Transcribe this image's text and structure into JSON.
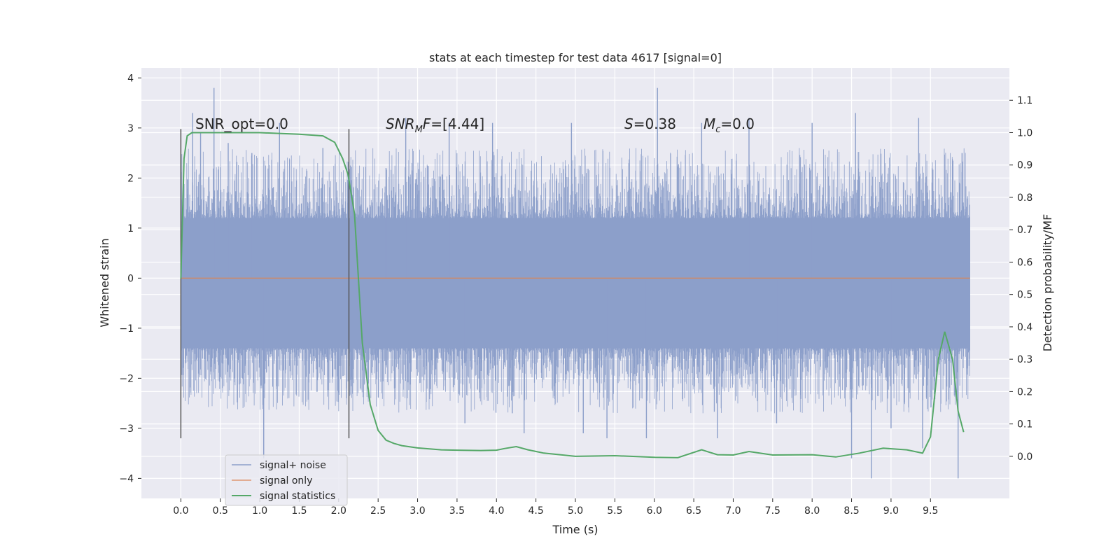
{
  "chart_data": {
    "type": "line",
    "title": "stats at each timestep for test data 4617 [signal=0]",
    "xlabel": "Time (s)",
    "ylabel": "Whitened strain",
    "ylabel_right": "Detection probability/MF",
    "xlim": [
      -0.5,
      10.5
    ],
    "ylim": [
      -4.4,
      4.2
    ],
    "ylim_right": [
      -0.13,
      1.2
    ],
    "x_ticks": [
      0.0,
      0.5,
      1.0,
      1.5,
      2.0,
      2.5,
      3.0,
      3.5,
      4.0,
      4.5,
      5.0,
      5.5,
      6.0,
      6.5,
      7.0,
      7.5,
      8.0,
      8.5,
      9.0,
      9.5
    ],
    "x_tick_labels": [
      "0.0",
      "0.5",
      "1.0",
      "1.5",
      "2.0",
      "2.5",
      "3.0",
      "3.5",
      "4.0",
      "4.5",
      "5.0",
      "5.5",
      "6.0",
      "6.5",
      "7.0",
      "7.5",
      "8.0",
      "8.5",
      "9.0",
      "9.5"
    ],
    "y_ticks": [
      -4,
      -3,
      -2,
      -1,
      0,
      1,
      2,
      3,
      4
    ],
    "y_tick_labels": [
      "−4",
      "−3",
      "−2",
      "−1",
      "0",
      "1",
      "2",
      "3",
      "4"
    ],
    "y_right_ticks": [
      0.0,
      0.1,
      0.2,
      0.3,
      0.4,
      0.5,
      0.6,
      0.7,
      0.8,
      0.9,
      1.0,
      1.1
    ],
    "y_right_tick_labels": [
      "0.0",
      "0.1",
      "0.2",
      "0.3",
      "0.4",
      "0.5",
      "0.6",
      "0.7",
      "0.8",
      "0.9",
      "1.0",
      "1.1"
    ],
    "grid": true,
    "legend_position": "lower-left",
    "annotations": {
      "snr_opt": "SNR_opt=0.0",
      "snr_mf": "=[4.44]",
      "snr_mf_symbol": "SNR",
      "snr_mf_sub": "M",
      "snr_mf_f": "F",
      "s_value": "=0.38",
      "s_symbol": "S",
      "mc_value": "=0.0",
      "mc_symbol": "M",
      "mc_sub": "c"
    },
    "markers": [
      0.0,
      2.13
    ],
    "series": [
      {
        "name": "signal+ noise",
        "color": "#8c9fca",
        "x_range": [
          0.0,
          10.0
        ],
        "typical_range": [
          -1.3,
          1.1
        ],
        "spikes": [
          [
            0.42,
            3.8
          ],
          [
            0.15,
            3.3
          ],
          [
            0.25,
            2.9
          ],
          [
            0.6,
            2.7
          ],
          [
            0.9,
            2.5
          ],
          [
            1.05,
            -3.6
          ],
          [
            1.25,
            3.1
          ],
          [
            1.8,
            2.6
          ],
          [
            2.1,
            -2.4
          ],
          [
            2.6,
            2.2
          ],
          [
            2.85,
            3.2
          ],
          [
            3.4,
            3.1
          ],
          [
            3.6,
            -2.9
          ],
          [
            3.95,
            3.1
          ],
          [
            4.2,
            -2.7
          ],
          [
            4.35,
            -3.1
          ],
          [
            4.95,
            3.1
          ],
          [
            5.1,
            -3.1
          ],
          [
            5.4,
            -3.2
          ],
          [
            5.9,
            -3.2
          ],
          [
            6.04,
            3.8
          ],
          [
            6.6,
            3.1
          ],
          [
            6.8,
            -3.2
          ],
          [
            7.2,
            3.2
          ],
          [
            7.55,
            -2.9
          ],
          [
            8.0,
            3.1
          ],
          [
            8.5,
            -3.6
          ],
          [
            8.55,
            3.3
          ],
          [
            8.75,
            -4.0
          ],
          [
            9.0,
            -3.0
          ],
          [
            9.35,
            3.2
          ],
          [
            9.4,
            -3.4
          ],
          [
            9.85,
            -4.0
          ],
          [
            9.9,
            2.5
          ]
        ]
      },
      {
        "name": "signal only",
        "color": "#dd8452",
        "x": [
          0.0,
          10.0
        ],
        "values": [
          0.0,
          0.0
        ]
      },
      {
        "name": "signal statistics",
        "color": "#55a868",
        "axis": "right",
        "x": [
          0.0,
          0.04,
          0.08,
          0.14,
          0.25,
          0.5,
          1.0,
          1.5,
          1.8,
          1.95,
          2.05,
          2.12,
          2.2,
          2.3,
          2.4,
          2.5,
          2.6,
          2.7,
          2.8,
          3.0,
          3.3,
          3.5,
          3.8,
          4.0,
          4.1,
          4.25,
          4.4,
          4.6,
          5.0,
          5.5,
          6.0,
          6.3,
          6.6,
          6.8,
          7.0,
          7.2,
          7.5,
          8.0,
          8.3,
          8.6,
          8.9,
          9.2,
          9.4,
          9.5,
          9.6,
          9.68,
          9.78,
          9.85,
          9.92
        ],
        "values": [
          0.55,
          0.92,
          0.99,
          1.0,
          1.0,
          1.0,
          1.0,
          0.995,
          0.99,
          0.97,
          0.92,
          0.87,
          0.75,
          0.35,
          0.16,
          0.08,
          0.05,
          0.04,
          0.033,
          0.026,
          0.02,
          0.019,
          0.018,
          0.019,
          0.024,
          0.03,
          0.02,
          0.01,
          0.0,
          0.002,
          -0.003,
          -0.004,
          0.02,
          0.005,
          0.004,
          0.015,
          0.004,
          0.005,
          -0.002,
          0.01,
          0.025,
          0.02,
          0.01,
          0.06,
          0.3,
          0.385,
          0.3,
          0.14,
          0.075
        ]
      }
    ]
  }
}
